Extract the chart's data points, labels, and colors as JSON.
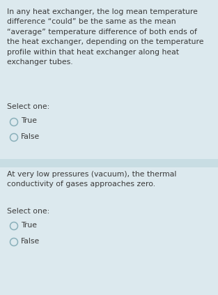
{
  "bg_color": "#dce9ee",
  "separator_color": "#c8dde3",
  "text_color": "#3a3a3a",
  "q1_text": "In any heat exchanger, the log mean temperature\ndifference “could” be the same as the mean\n“average” temperature difference of both ends of\nthe heat exchanger, depending on the temperature\nprofile within that heat exchanger along heat\nexchanger tubes.",
  "q1_select": "Select one:",
  "q1_true": "True",
  "q1_false": "False",
  "q2_text": "At very low pressures (vacuum), the thermal\nconductivity of gases approaches zero.",
  "q2_select": "Select one:",
  "q2_true": "True",
  "q2_false": "False",
  "font_size_question": 7.8,
  "font_size_select": 7.8,
  "font_size_option": 7.8,
  "figwidth": 3.13,
  "figheight": 4.23,
  "dpi": 100
}
